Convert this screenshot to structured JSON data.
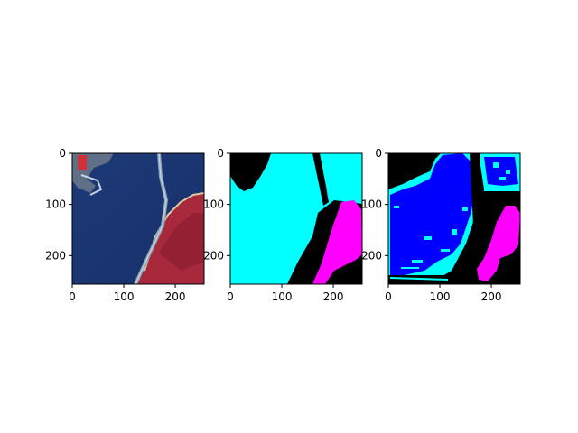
{
  "figure": {
    "background": "#ffffff"
  },
  "chart_data": [
    {
      "type": "image",
      "title": "",
      "content": "satellite-image",
      "xticks": [
        0,
        100,
        200
      ],
      "yticks": [
        0,
        100,
        200
      ],
      "xlim": [
        0,
        256
      ],
      "ylim": [
        256,
        0
      ]
    },
    {
      "type": "image",
      "title": "",
      "content": "segmentation-ground-truth",
      "xticks": [
        0,
        100,
        200
      ],
      "yticks": [
        0,
        100,
        200
      ],
      "xlim": [
        0,
        256
      ],
      "ylim": [
        256,
        0
      ],
      "class_colors": [
        "#000000",
        "#00ffff",
        "#ff00ff"
      ]
    },
    {
      "type": "image",
      "title": "",
      "content": "segmentation-prediction",
      "xticks": [
        0,
        100,
        200
      ],
      "yticks": [
        0,
        100,
        200
      ],
      "xlim": [
        0,
        256
      ],
      "ylim": [
        256,
        0
      ],
      "class_colors": [
        "#000000",
        "#0000ff",
        "#00ffff",
        "#ff00ff"
      ]
    }
  ]
}
